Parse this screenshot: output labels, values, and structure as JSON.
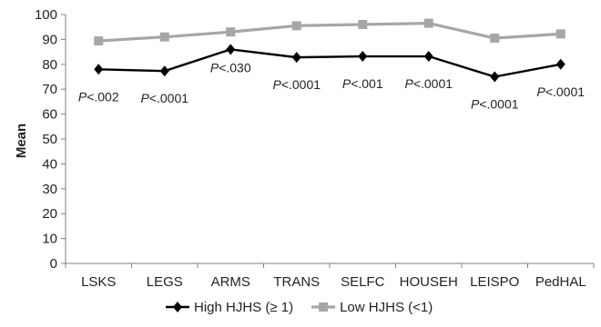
{
  "chart_data": {
    "type": "line",
    "categories": [
      "LSKS",
      "LEGS",
      "ARMS",
      "TRANS",
      "SELFC",
      "HOUSEH",
      "LEISPO",
      "PedHAL"
    ],
    "ylabel": "Mean",
    "ylim": [
      0,
      100
    ],
    "yticks": [
      0,
      10,
      20,
      30,
      40,
      50,
      60,
      70,
      80,
      90,
      100
    ],
    "grid": false,
    "legend_position": "bottom",
    "series": [
      {
        "name": "High HJHS (≥ 1)",
        "values": [
          78,
          77.3,
          86,
          82.8,
          83.2,
          83.2,
          75,
          80
        ],
        "color": "#000000",
        "marker": "diamond"
      },
      {
        "name": "Low HJHS (<1)",
        "values": [
          89.4,
          91,
          93,
          95.5,
          96,
          96.5,
          90.5,
          92.2
        ],
        "color": "#a6a6a6",
        "marker": "square"
      }
    ],
    "annotations": [
      {
        "category": "LSKS",
        "p": "P",
        "text": "<.002"
      },
      {
        "category": "LEGS",
        "p": "P",
        "text": "<.0001"
      },
      {
        "category": "ARMS",
        "p": "P",
        "text": "<.030"
      },
      {
        "category": "TRANS",
        "p": "P",
        "text": "<.0001"
      },
      {
        "category": "SELFC",
        "p": "P",
        "text": "<.001"
      },
      {
        "category": "HOUSEH",
        "p": "P",
        "text": "<.0001"
      },
      {
        "category": "LEISPO",
        "p": "P",
        "text": "<.0001"
      },
      {
        "category": "PedHAL",
        "p": "P",
        "text": "<.0001"
      }
    ]
  }
}
